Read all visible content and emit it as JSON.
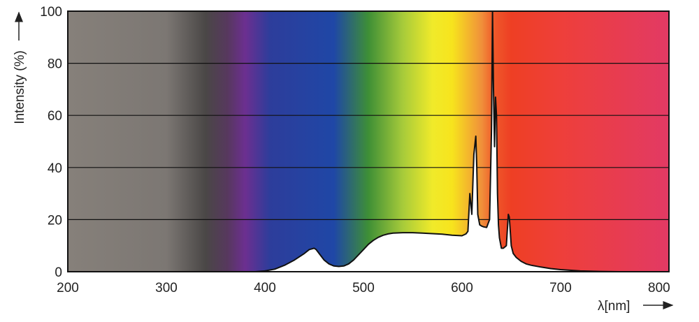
{
  "chart_data": {
    "type": "area",
    "title": "",
    "ylabel": "Intensity (%)",
    "xlabel": "λ[nm]",
    "xlim": [
      200,
      810
    ],
    "ylim": [
      0,
      100
    ],
    "x_ticks": [
      200,
      300,
      400,
      500,
      600,
      700,
      800
    ],
    "y_ticks": [
      0,
      20,
      40,
      60,
      80,
      100
    ],
    "grid": "horizontal",
    "series": [
      {
        "x": [
          375,
          390,
          400,
          410,
          420,
          430,
          440,
          445,
          450,
          452,
          455,
          460,
          465,
          470,
          475,
          480,
          485,
          490,
          495,
          500,
          505,
          510,
          515,
          520,
          525,
          530,
          540,
          550,
          560,
          570,
          580,
          590,
          600,
          604,
          606,
          608,
          610,
          612,
          614,
          615,
          616,
          618,
          620,
          622,
          625,
          628,
          630,
          631,
          632,
          633,
          634,
          635,
          636,
          637,
          638,
          640,
          642,
          645,
          647,
          648,
          650,
          652,
          655,
          660,
          665,
          670,
          680,
          690,
          700,
          720,
          740,
          760,
          780,
          790
        ],
        "y": [
          0,
          0,
          0.3,
          1,
          2.5,
          4.5,
          7,
          8.5,
          9,
          8.5,
          7,
          4.5,
          3,
          2.2,
          2,
          2.2,
          3,
          4.5,
          6.5,
          8.5,
          10.5,
          12,
          13.2,
          14,
          14.5,
          14.8,
          15,
          15,
          14.8,
          14.6,
          14.4,
          14,
          13.8,
          14.5,
          15.5,
          30,
          22,
          45,
          52,
          40,
          22,
          18,
          17.5,
          17.2,
          17,
          20,
          55,
          100,
          70,
          48,
          67,
          60,
          30,
          18,
          13,
          9,
          9,
          10,
          22,
          21,
          10,
          7,
          5.5,
          4,
          3,
          2.5,
          1.8,
          1.2,
          0.8,
          0.3,
          0.1,
          0,
          0,
          0
        ]
      }
    ],
    "spectrum_background": [
      {
        "nm": 200,
        "color": "#86807a"
      },
      {
        "nm": 300,
        "color": "#7c7773"
      },
      {
        "nm": 340,
        "color": "#4a4746"
      },
      {
        "nm": 362,
        "color": "#57385e"
      },
      {
        "nm": 380,
        "color": "#6c2f90"
      },
      {
        "nm": 405,
        "color": "#2d3d9b"
      },
      {
        "nm": 470,
        "color": "#1f47a6"
      },
      {
        "nm": 505,
        "color": "#3e8f36"
      },
      {
        "nm": 540,
        "color": "#a7cb3a"
      },
      {
        "nm": 570,
        "color": "#f0ea2a"
      },
      {
        "nm": 590,
        "color": "#f7e41d"
      },
      {
        "nm": 620,
        "color": "#f0903a"
      },
      {
        "nm": 632,
        "color": "#ef5a2a"
      },
      {
        "nm": 650,
        "color": "#ee3f24"
      },
      {
        "nm": 700,
        "color": "#ee3f3a"
      },
      {
        "nm": 810,
        "color": "#e23a64"
      }
    ]
  }
}
